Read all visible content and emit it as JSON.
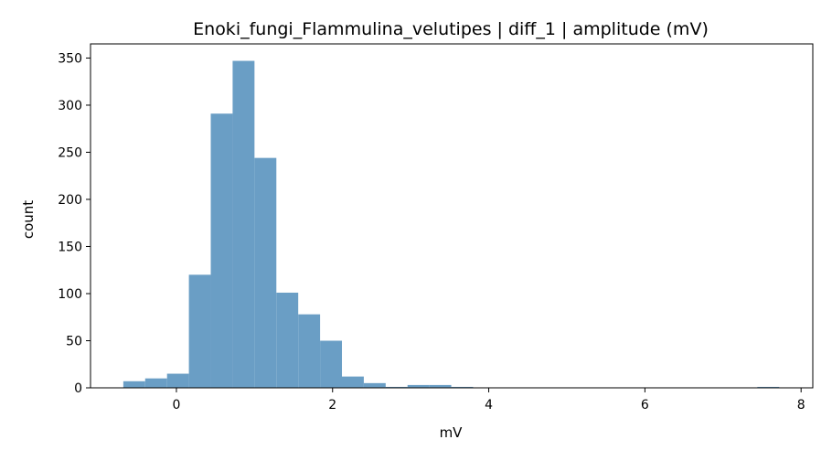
{
  "chart_data": {
    "type": "bar",
    "title": "Enoki_fungi_Flammulina_velutipes | diff_1 | amplitude (mV)",
    "xlabel": "mV",
    "ylabel": "count",
    "xlim": [
      -1.1,
      8.15
    ],
    "ylim": [
      0,
      365
    ],
    "xticks": [
      0,
      2,
      4,
      6,
      8
    ],
    "yticks": [
      0,
      50,
      100,
      150,
      200,
      250,
      300,
      350
    ],
    "bin_edges": [
      -0.68,
      -0.4,
      -0.12,
      0.16,
      0.44,
      0.72,
      1.0,
      1.28,
      1.56,
      1.84,
      2.12,
      2.4,
      2.68,
      2.96,
      3.24,
      3.52,
      3.8,
      4.08,
      4.36,
      4.64,
      4.92,
      5.2,
      5.48,
      5.76,
      6.04,
      6.32,
      6.6,
      6.88,
      7.16,
      7.44,
      7.72
    ],
    "counts": [
      7,
      10,
      15,
      120,
      291,
      347,
      244,
      101,
      78,
      50,
      12,
      5,
      1,
      3,
      3,
      1,
      0,
      0,
      0,
      0,
      0,
      0,
      0,
      0,
      0,
      0,
      0,
      0,
      0,
      1
    ],
    "bar_color": "#6a9ec5",
    "grid": false
  }
}
